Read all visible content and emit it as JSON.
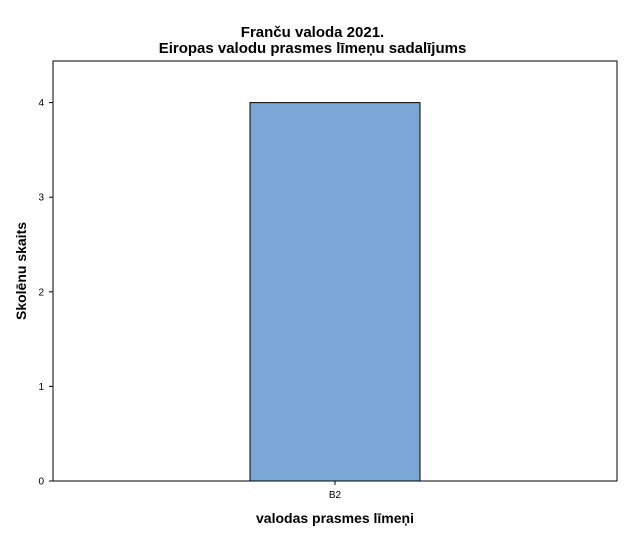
{
  "chart_data": {
    "type": "bar",
    "title": "Franču valoda 2021.",
    "subtitle": "Eiropas valodu prasmes līmeņu sadalījums",
    "xlabel": "valodas prasmes līmeņi",
    "ylabel": "Skolēnu skaits",
    "categories": [
      "B2"
    ],
    "values": [
      4
    ],
    "ylim": [
      0,
      4.44
    ],
    "yticks": [
      "0",
      "1",
      "2",
      "3",
      "4"
    ],
    "grid": false,
    "bar_color": "#7BA7D6"
  }
}
